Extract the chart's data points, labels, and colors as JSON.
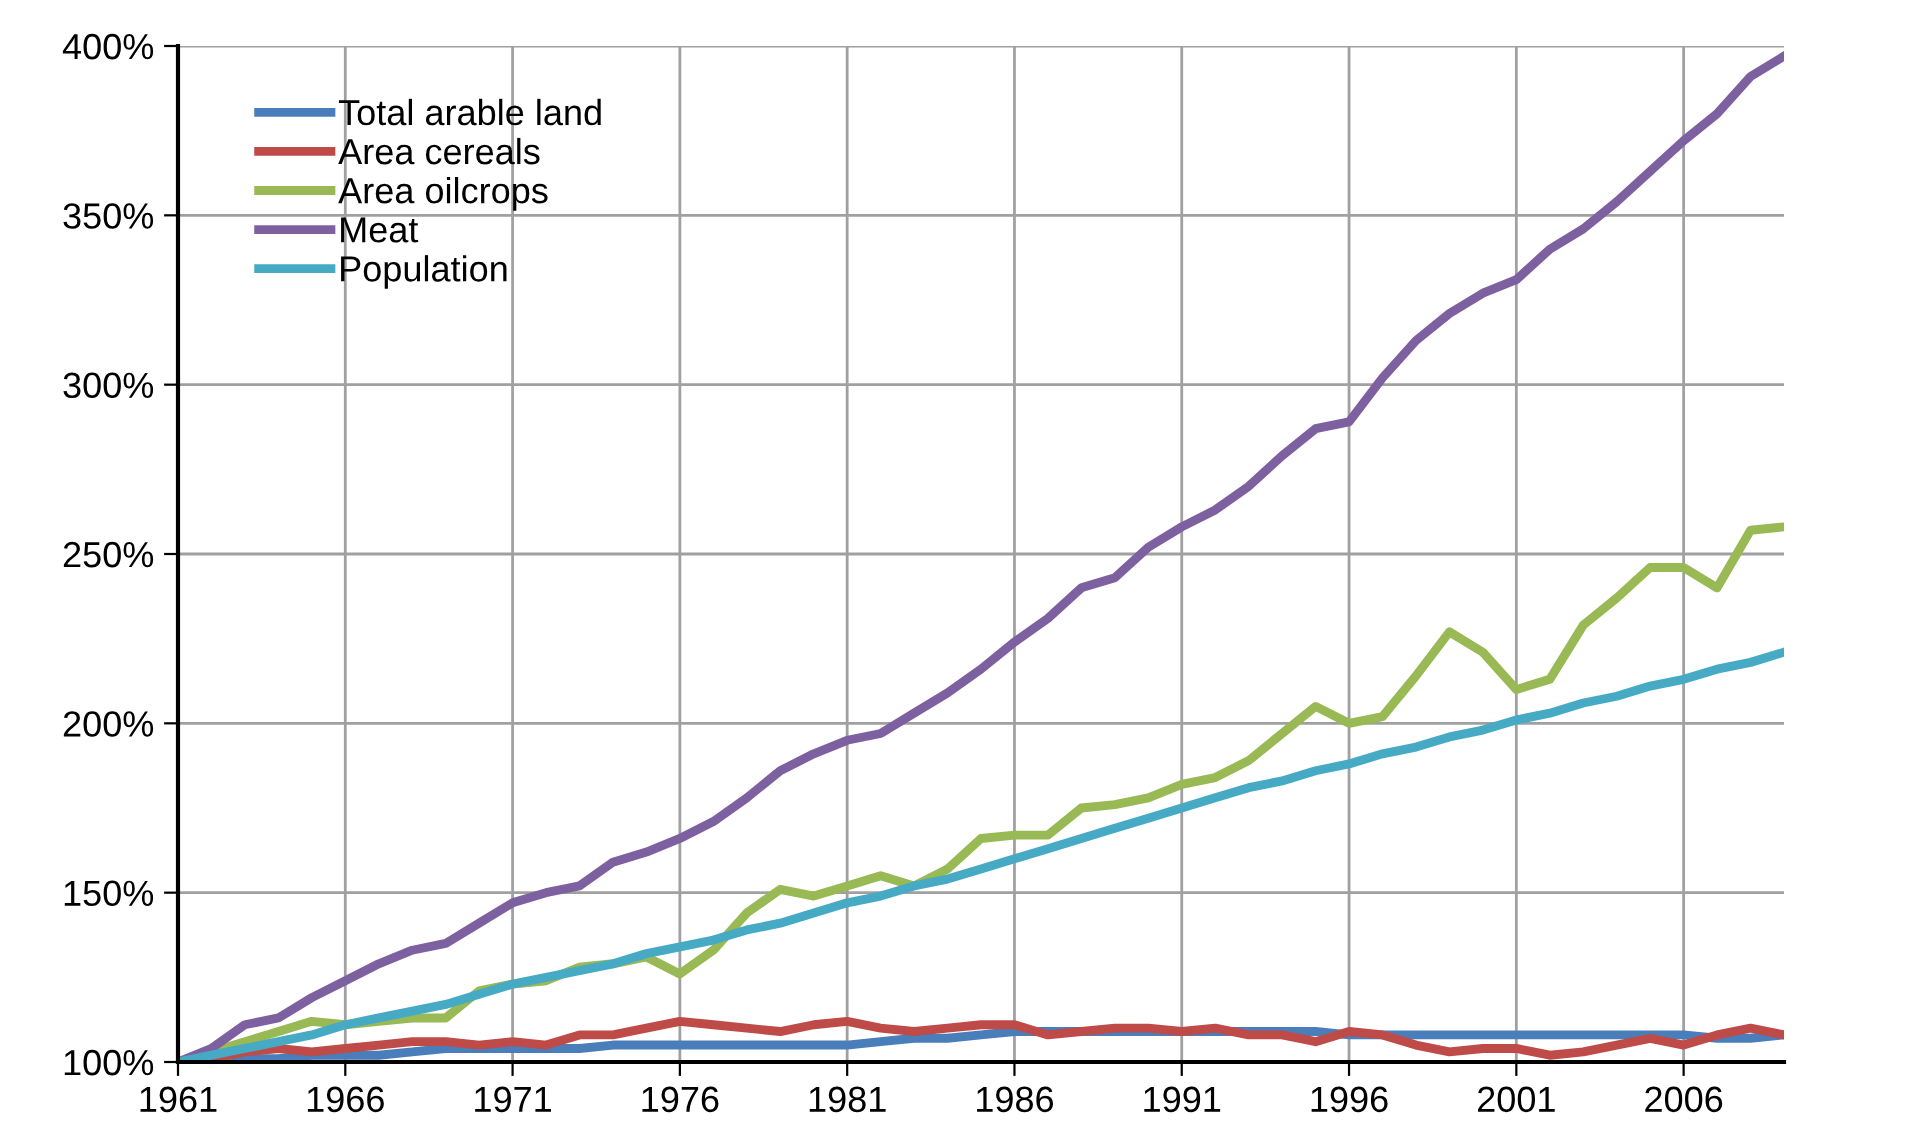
{
  "chart_data": {
    "type": "line",
    "x": [
      1961,
      1962,
      1963,
      1964,
      1965,
      1966,
      1967,
      1968,
      1969,
      1970,
      1971,
      1972,
      1973,
      1974,
      1975,
      1976,
      1977,
      1978,
      1979,
      1980,
      1981,
      1982,
      1983,
      1984,
      1985,
      1986,
      1987,
      1988,
      1989,
      1990,
      1991,
      1992,
      1993,
      1994,
      1995,
      1996,
      1997,
      1998,
      1999,
      2000,
      2001,
      2002,
      2003,
      2004,
      2005,
      2006,
      2007,
      2008,
      2009
    ],
    "series": [
      {
        "name": "Total arable land",
        "color": "#4a7ebb",
        "values": [
          100,
          100,
          101,
          101,
          102,
          102,
          102,
          103,
          104,
          104,
          104,
          104,
          104,
          105,
          105,
          105,
          105,
          105,
          105,
          105,
          105,
          106,
          107,
          107,
          108,
          109,
          109,
          109,
          109,
          109,
          109,
          109,
          109,
          109,
          109,
          108,
          108,
          108,
          108,
          108,
          108,
          108,
          108,
          108,
          108,
          108,
          107,
          107,
          108
        ]
      },
      {
        "name": "Area cereals",
        "color": "#be4b48",
        "values": [
          100,
          101,
          103,
          104,
          103,
          104,
          105,
          106,
          106,
          105,
          106,
          105,
          108,
          108,
          110,
          112,
          111,
          110,
          109,
          111,
          112,
          110,
          109,
          110,
          111,
          111,
          108,
          109,
          110,
          110,
          109,
          110,
          108,
          108,
          106,
          109,
          108,
          105,
          103,
          104,
          104,
          102,
          103,
          105,
          107,
          105,
          108,
          110,
          108
        ]
      },
      {
        "name": "Area oilcrops",
        "color": "#98b954",
        "values": [
          100,
          103,
          106,
          109,
          112,
          111,
          112,
          113,
          113,
          121,
          123,
          124,
          128,
          129,
          131,
          126,
          133,
          144,
          151,
          149,
          152,
          155,
          152,
          157,
          166,
          167,
          167,
          175,
          176,
          178,
          182,
          184,
          189,
          197,
          205,
          200,
          202,
          214,
          227,
          221,
          210,
          213,
          229,
          237,
          246,
          246,
          240,
          257,
          258
        ]
      },
      {
        "name": "Meat",
        "color": "#7d60a0",
        "values": [
          100,
          104,
          111,
          113,
          119,
          124,
          129,
          133,
          135,
          141,
          147,
          150,
          152,
          159,
          162,
          166,
          171,
          178,
          186,
          191,
          195,
          197,
          203,
          209,
          216,
          224,
          231,
          240,
          243,
          252,
          258,
          263,
          270,
          279,
          287,
          289,
          302,
          313,
          321,
          327,
          331,
          340,
          346,
          354,
          363,
          372,
          380,
          391,
          397
        ]
      },
      {
        "name": "Population",
        "color": "#46aac5",
        "values": [
          100,
          102,
          104,
          106,
          108,
          111,
          113,
          115,
          117,
          120,
          123,
          125,
          127,
          129,
          132,
          134,
          136,
          139,
          141,
          144,
          147,
          149,
          152,
          154,
          157,
          160,
          163,
          166,
          169,
          172,
          175,
          178,
          181,
          183,
          186,
          188,
          191,
          193,
          196,
          198,
          201,
          203,
          206,
          208,
          211,
          213,
          216,
          218,
          221
        ]
      }
    ],
    "xlim": [
      1961,
      2009
    ],
    "xticks": [
      1961,
      1966,
      1971,
      1976,
      1981,
      1986,
      1991,
      1996,
      2001,
      2006
    ],
    "ylim": [
      100,
      400
    ],
    "yticks": [
      {
        "value": 100,
        "label": "100%"
      },
      {
        "value": 150,
        "label": "150%"
      },
      {
        "value": 200,
        "label": "200%"
      },
      {
        "value": 250,
        "label": "250%"
      },
      {
        "value": 300,
        "label": "300%"
      },
      {
        "value": 350,
        "label": "350%"
      },
      {
        "value": 400,
        "label": "400%"
      }
    ],
    "grid": true,
    "legend": "top left",
    "marker": "none",
    "line_style": "solid"
  }
}
